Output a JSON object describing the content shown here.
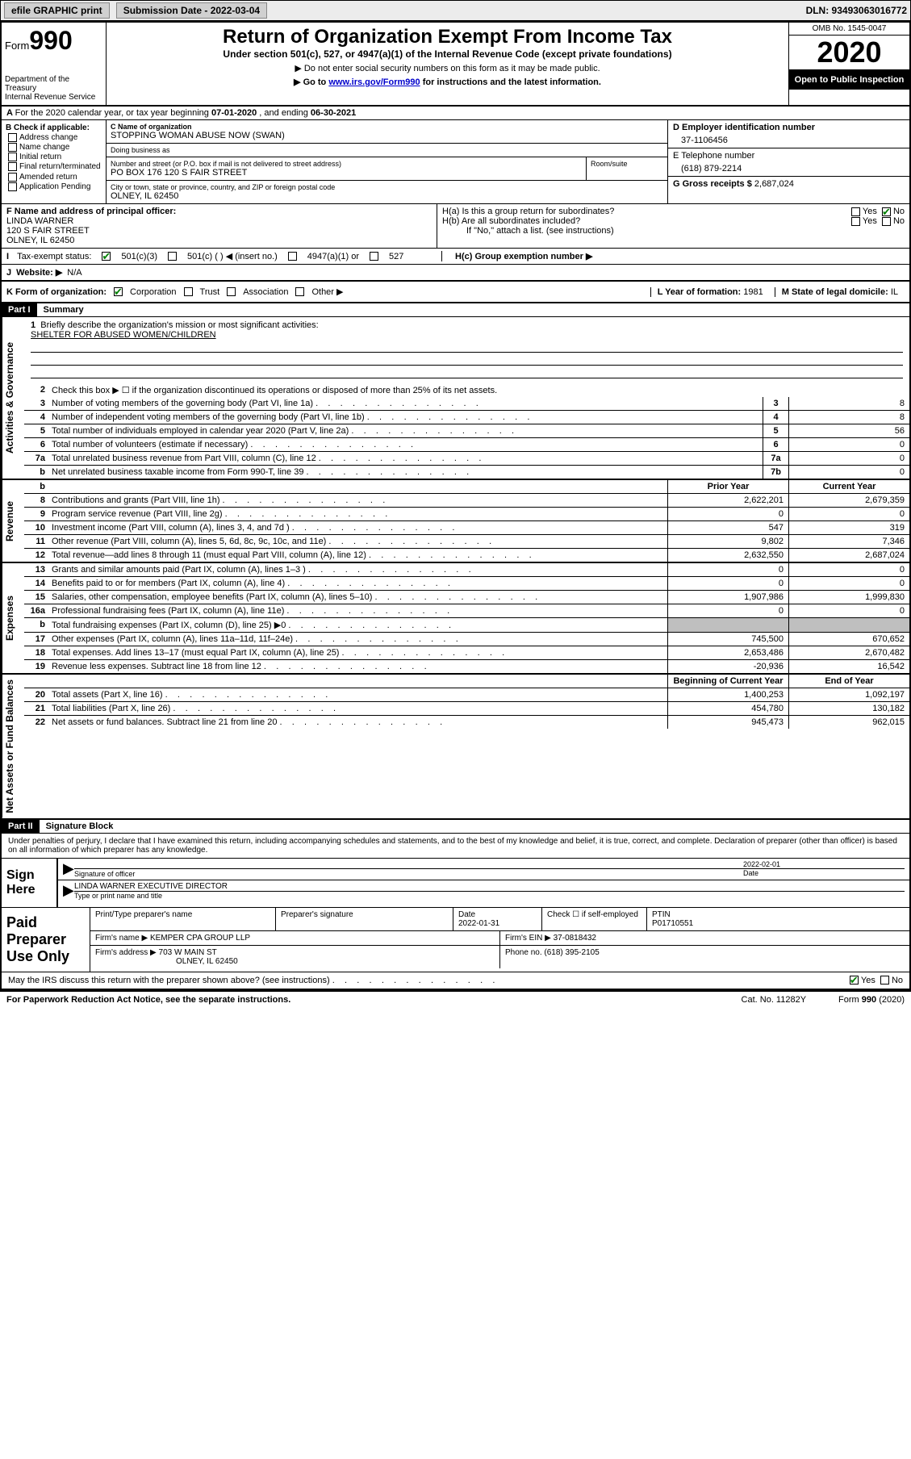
{
  "topbar": {
    "efile": "efile GRAPHIC print",
    "submission_label": "Submission Date - 2022-03-04",
    "dln": "DLN: 93493063016772"
  },
  "header": {
    "form_prefix": "Form",
    "form_number": "990",
    "dept": "Department of the Treasury\nInternal Revenue Service",
    "title": "Return of Organization Exempt From Income Tax",
    "subtitle": "Under section 501(c), 527, or 4947(a)(1) of the Internal Revenue Code (except private foundations)",
    "note1": "▶ Do not enter social security numbers on this form as it may be made public.",
    "note2_pre": "▶ Go to ",
    "note2_link": "www.irs.gov/Form990",
    "note2_post": " for instructions and the latest information.",
    "omb": "OMB No. 1545-0047",
    "year": "2020",
    "inspect": "Open to Public Inspection"
  },
  "a": {
    "text_pre": "For the 2020 calendar year, or tax year beginning ",
    "begin": "07-01-2020",
    "mid": " , and ending ",
    "end": "06-30-2021"
  },
  "b": {
    "heading": "B Check if applicable:",
    "items": [
      "Address change",
      "Name change",
      "Initial return",
      "Final return/terminated",
      "Amended return",
      "Application Pending"
    ]
  },
  "c": {
    "name_label": "C Name of organization",
    "name": "STOPPING WOMAN ABUSE NOW (SWAN)",
    "dba_label": "Doing business as",
    "dba": "",
    "street_label": "Number and street (or P.O. box if mail is not delivered to street address)",
    "street": "PO BOX 176 120 S FAIR STREET",
    "room_label": "Room/suite",
    "city_label": "City or town, state or province, country, and ZIP or foreign postal code",
    "city": "OLNEY, IL  62450"
  },
  "d": {
    "label": "D Employer identification number",
    "value": "37-1106456"
  },
  "e": {
    "label": "E Telephone number",
    "value": "(618) 879-2214"
  },
  "g": {
    "label": "G Gross receipts $ ",
    "value": "2,687,024"
  },
  "f": {
    "label": "F Name and address of principal officer:",
    "name": "LINDA WARNER",
    "street": "120 S FAIR STREET",
    "city": "OLNEY, IL  62450"
  },
  "h": {
    "a_label": "H(a)  Is this a group return for subordinates?",
    "a_yes": "Yes",
    "a_no": "No",
    "b_label": "H(b)  Are all subordinates included?",
    "b_yes": "Yes",
    "b_no": "No",
    "b_note": "If \"No,\" attach a list. (see instructions)",
    "c_label": "H(c)  Group exemption number ▶"
  },
  "i": {
    "label": "Tax-exempt status:",
    "opt1": "501(c)(3)",
    "opt2": "501(c) (  ) ◀ (insert no.)",
    "opt3": "4947(a)(1) or",
    "opt4": "527"
  },
  "j": {
    "label": "Website: ▶",
    "value": "N/A"
  },
  "k": {
    "label": "K Form of organization:",
    "opts": [
      "Corporation",
      "Trust",
      "Association",
      "Other ▶"
    ],
    "l_label": "L Year of formation: ",
    "l_value": "1981",
    "m_label": "M State of legal domicile: ",
    "m_value": "IL"
  },
  "part1": {
    "label": "Part I",
    "title": "Summary"
  },
  "vtabs": {
    "gov": "Activities & Governance",
    "rev": "Revenue",
    "exp": "Expenses",
    "net": "Net Assets or Fund Balances"
  },
  "summary": {
    "mission_label": "Briefly describe the organization's mission or most significant activities:",
    "mission": "SHELTER FOR ABUSED WOMEN/CHILDREN",
    "line2": "Check this box ▶ ☐ if the organization discontinued its operations or disposed of more than 25% of its net assets.",
    "lines": [
      {
        "n": "3",
        "d": "Number of voting members of the governing body (Part VI, line 1a)",
        "box": "3",
        "v": "8"
      },
      {
        "n": "4",
        "d": "Number of independent voting members of the governing body (Part VI, line 1b)",
        "box": "4",
        "v": "8"
      },
      {
        "n": "5",
        "d": "Total number of individuals employed in calendar year 2020 (Part V, line 2a)",
        "box": "5",
        "v": "56"
      },
      {
        "n": "6",
        "d": "Total number of volunteers (estimate if necessary)",
        "box": "6",
        "v": "0"
      },
      {
        "n": "7a",
        "d": "Total unrelated business revenue from Part VIII, column (C), line 12",
        "box": "7a",
        "v": "0"
      },
      {
        "n": "b",
        "d": "Net unrelated business taxable income from Form 990-T, line 39",
        "box": "7b",
        "v": "0"
      }
    ],
    "col_prior": "Prior Year",
    "col_current": "Current Year",
    "rev": [
      {
        "n": "8",
        "d": "Contributions and grants (Part VIII, line 1h)",
        "p": "2,622,201",
        "c": "2,679,359"
      },
      {
        "n": "9",
        "d": "Program service revenue (Part VIII, line 2g)",
        "p": "0",
        "c": "0"
      },
      {
        "n": "10",
        "d": "Investment income (Part VIII, column (A), lines 3, 4, and 7d )",
        "p": "547",
        "c": "319"
      },
      {
        "n": "11",
        "d": "Other revenue (Part VIII, column (A), lines 5, 6d, 8c, 9c, 10c, and 11e)",
        "p": "9,802",
        "c": "7,346"
      },
      {
        "n": "12",
        "d": "Total revenue—add lines 8 through 11 (must equal Part VIII, column (A), line 12)",
        "p": "2,632,550",
        "c": "2,687,024"
      }
    ],
    "exp": [
      {
        "n": "13",
        "d": "Grants and similar amounts paid (Part IX, column (A), lines 1–3 )",
        "p": "0",
        "c": "0"
      },
      {
        "n": "14",
        "d": "Benefits paid to or for members (Part IX, column (A), line 4)",
        "p": "0",
        "c": "0"
      },
      {
        "n": "15",
        "d": "Salaries, other compensation, employee benefits (Part IX, column (A), lines 5–10)",
        "p": "1,907,986",
        "c": "1,999,830"
      },
      {
        "n": "16a",
        "d": "Professional fundraising fees (Part IX, column (A), line 11e)",
        "p": "0",
        "c": "0"
      },
      {
        "n": "b",
        "d": "Total fundraising expenses (Part IX, column (D), line 25) ▶0",
        "p": "",
        "c": "",
        "shaded": true
      },
      {
        "n": "17",
        "d": "Other expenses (Part IX, column (A), lines 11a–11d, 11f–24e)",
        "p": "745,500",
        "c": "670,652"
      },
      {
        "n": "18",
        "d": "Total expenses. Add lines 13–17 (must equal Part IX, column (A), line 25)",
        "p": "2,653,486",
        "c": "2,670,482"
      },
      {
        "n": "19",
        "d": "Revenue less expenses. Subtract line 18 from line 12",
        "p": "-20,936",
        "c": "16,542"
      }
    ],
    "col_begin": "Beginning of Current Year",
    "col_end": "End of Year",
    "net": [
      {
        "n": "20",
        "d": "Total assets (Part X, line 16)",
        "p": "1,400,253",
        "c": "1,092,197"
      },
      {
        "n": "21",
        "d": "Total liabilities (Part X, line 26)",
        "p": "454,780",
        "c": "130,182"
      },
      {
        "n": "22",
        "d": "Net assets or fund balances. Subtract line 21 from line 20",
        "p": "945,473",
        "c": "962,015"
      }
    ]
  },
  "part2": {
    "label": "Part II",
    "title": "Signature Block",
    "penalty": "Under penalties of perjury, I declare that I have examined this return, including accompanying schedules and statements, and to the best of my knowledge and belief, it is true, correct, and complete. Declaration of preparer (other than officer) is based on all information of which preparer has any knowledge."
  },
  "sign": {
    "here": "Sign Here",
    "sig_label": "Signature of officer",
    "date": "2022-02-01",
    "date_label": "Date",
    "name": "LINDA WARNER  EXECUTIVE DIRECTOR",
    "name_label": "Type or print name and title"
  },
  "prep": {
    "label": "Paid Preparer Use Only",
    "h1": "Print/Type preparer's name",
    "h2": "Preparer's signature",
    "h3": "Date",
    "date": "2022-01-31",
    "h4": "Check ☐ if self-employed",
    "h5": "PTIN",
    "ptin": "P01710551",
    "firm_label": "Firm's name    ▶ ",
    "firm": "KEMPER CPA GROUP LLP",
    "ein_label": "Firm's EIN ▶ ",
    "ein": "37-0818432",
    "addr_label": "Firm's address ▶ ",
    "addr1": "703 W MAIN ST",
    "addr2": "OLNEY, IL  62450",
    "phone_label": "Phone no. ",
    "phone": "(618) 395-2105"
  },
  "discuss": {
    "text": "May the IRS discuss this return with the preparer shown above? (see instructions)",
    "yes": "Yes",
    "no": "No"
  },
  "footer": {
    "pra": "For Paperwork Reduction Act Notice, see the separate instructions.",
    "cat": "Cat. No. 11282Y",
    "form": "Form 990 (2020)"
  }
}
